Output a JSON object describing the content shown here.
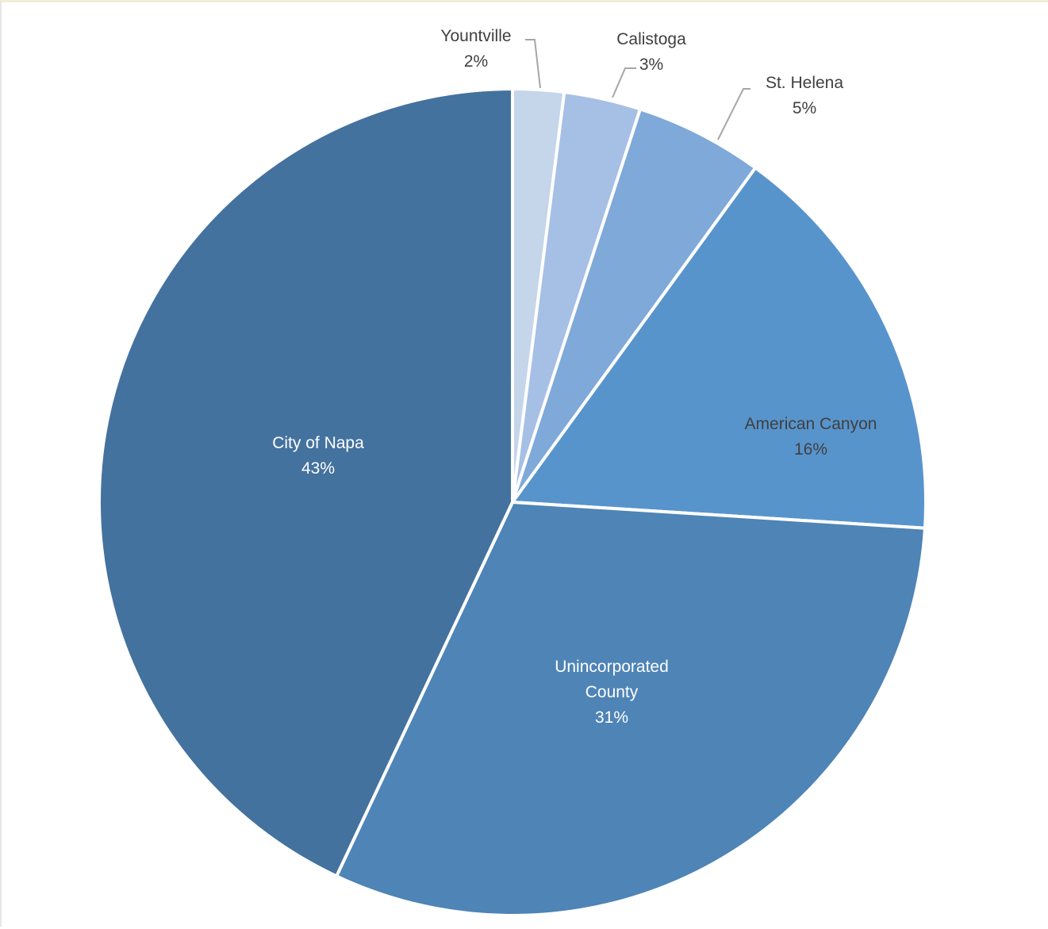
{
  "chart_data": {
    "type": "pie",
    "title": "",
    "start_angle_deg": 0,
    "direction": "clockwise",
    "slices": [
      {
        "name": "Yountville",
        "value": 2,
        "label": "2%",
        "color": "#c5d5ea"
      },
      {
        "name": "Calistoga",
        "value": 3,
        "label": "3%",
        "color": "#a6bfe4"
      },
      {
        "name": "St. Helena",
        "value": 5,
        "label": "5%",
        "color": "#7ea9d9"
      },
      {
        "name": "American Canyon",
        "value": 16,
        "label": "16%",
        "color": "#5894cc"
      },
      {
        "name": "Unincorporated County",
        "value": 31,
        "label": "31%",
        "color": "#4e84b6"
      },
      {
        "name": "City of Napa",
        "value": 43,
        "label": "43%",
        "color": "#44729e"
      }
    ],
    "label_colors": {
      "outside": "#404040",
      "inside_light": "#404040",
      "inside_dark": "#ffffff"
    },
    "legend": "none"
  }
}
